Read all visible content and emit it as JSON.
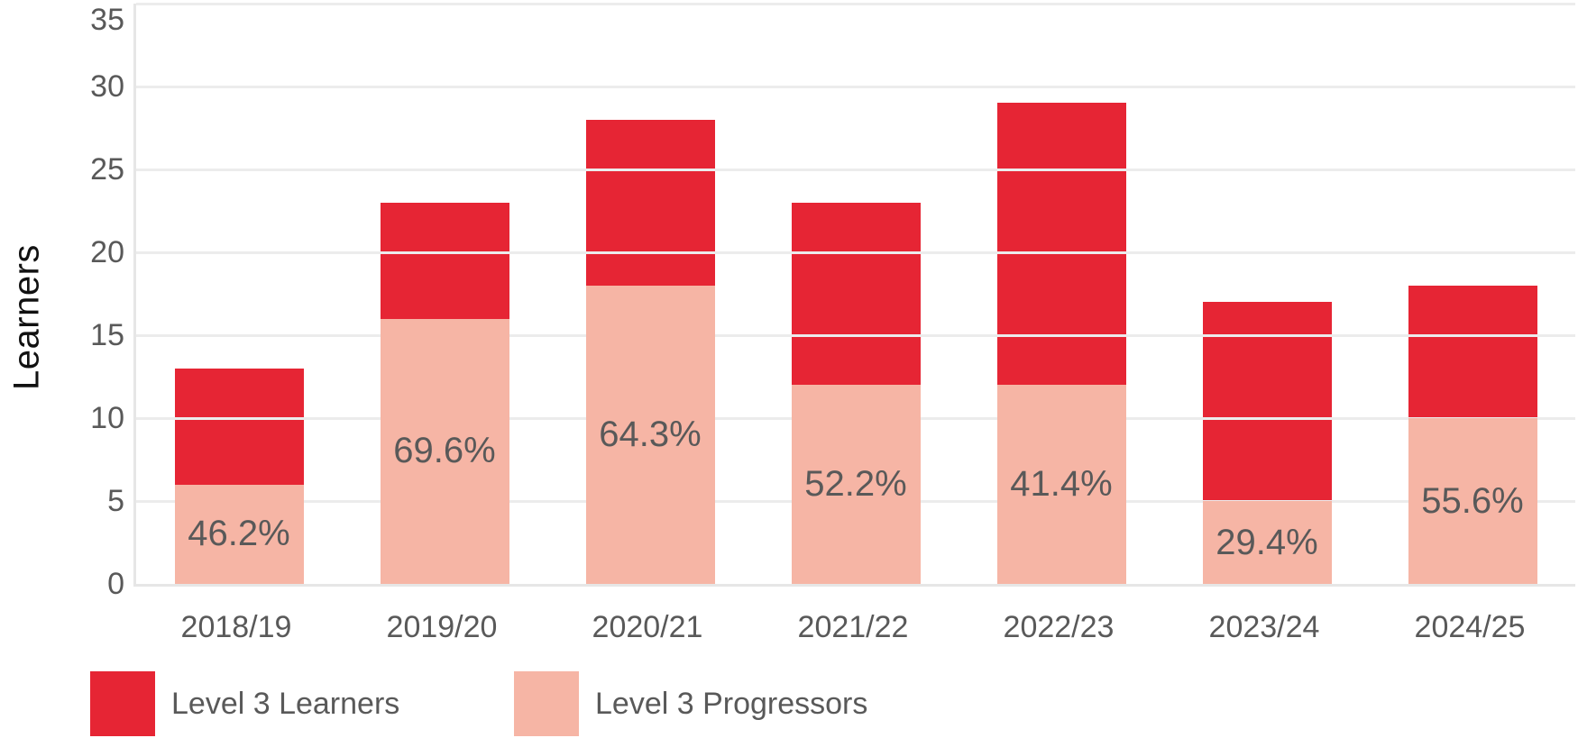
{
  "chart_data": {
    "type": "bar",
    "subtype": "stacked-overlay",
    "title": "",
    "xlabel": "",
    "ylabel": "Learners",
    "ylim": [
      0,
      35
    ],
    "yticks": [
      0,
      5,
      10,
      15,
      20,
      25,
      30,
      35
    ],
    "grid": true,
    "legend_position": "bottom-left",
    "categories": [
      "2018/19",
      "2019/20",
      "2020/21",
      "2021/22",
      "2022/23",
      "2023/24",
      "2024/25"
    ],
    "series": [
      {
        "name": "Level 3 Learners",
        "color": "#e62534",
        "values": [
          13,
          23,
          28,
          23,
          29,
          17,
          18
        ]
      },
      {
        "name": "Level 3 Progressors",
        "color": "#f6b5a5",
        "values": [
          6,
          16,
          18,
          12,
          12,
          5,
          10
        ]
      }
    ],
    "percent_labels": [
      "46.2%",
      "69.6%",
      "64.3%",
      "52.2%",
      "41.4%",
      "29.4%",
      "55.6%"
    ],
    "percent_label_meaning": "Level 3 Progressors as share of Level 3 Learners"
  },
  "colors": {
    "learners_red": "#e62534",
    "progressors_pink": "#f6b5a5",
    "tick_text": "#595959",
    "percent_text": "#595959",
    "axis_title_text": "#111111",
    "gridline": "#ececec",
    "axis_line": "#e6e6e6",
    "background": "#ffffff"
  }
}
